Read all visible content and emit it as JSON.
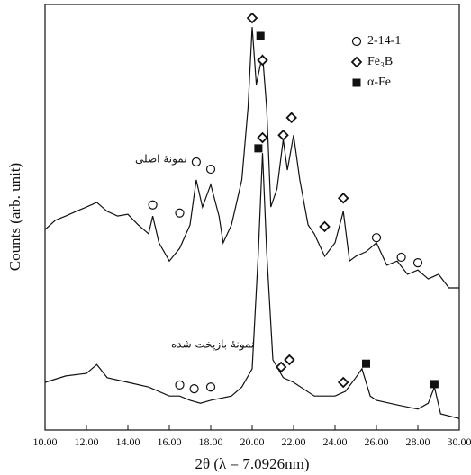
{
  "chart_data": {
    "type": "line",
    "x_label": "2θ (λ = 7.0926nm)",
    "y_label": "Counts (arb. unit)",
    "xlim": [
      10,
      30
    ],
    "ylim": [
      0,
      100
    ],
    "xticks": [
      {
        "value": 10,
        "label": "10.00"
      },
      {
        "value": 12,
        "label": "12.00"
      },
      {
        "value": 14,
        "label": "14.00"
      },
      {
        "value": 16,
        "label": "16.00"
      },
      {
        "value": 18,
        "label": "18.00"
      },
      {
        "value": 20,
        "label": "20.00"
      },
      {
        "value": 22,
        "label": "22.00"
      },
      {
        "value": 24,
        "label": "24.00"
      },
      {
        "value": 26,
        "label": "26.00"
      },
      {
        "value": 28,
        "label": "28.00"
      },
      {
        "value": 30,
        "label": "30.00"
      }
    ],
    "series": [
      {
        "name": "نمونهٔ اصلی",
        "color": "#111111",
        "x": [
          10,
          10.5,
          11,
          11.5,
          12,
          12.5,
          13,
          13.5,
          14,
          14.5,
          15,
          15.2,
          15.5,
          16,
          16.5,
          17,
          17.3,
          17.6,
          18,
          18.4,
          18.6,
          19,
          19.5,
          19.8,
          20,
          20.2,
          20.5,
          20.7,
          20.9,
          21.2,
          21.5,
          21.7,
          22,
          22.3,
          22.7,
          23,
          23.5,
          24,
          24.4,
          24.7,
          25,
          25.5,
          26,
          26.5,
          27,
          27.5,
          28,
          28.5,
          29,
          29.5,
          30
        ],
        "values": [
          47.1,
          49.3,
          50.3,
          51.4,
          52.4,
          53.5,
          51.4,
          50.3,
          50.7,
          48.2,
          46.1,
          50.3,
          44.0,
          39.7,
          42.7,
          48.2,
          58.8,
          52.4,
          57.7,
          50.3,
          44.0,
          48.2,
          58.8,
          75.7,
          94.7,
          81.2,
          88.2,
          75.7,
          52.4,
          56.7,
          68.3,
          61.1,
          69.3,
          58.8,
          48.2,
          46.1,
          40.8,
          44.0,
          51.4,
          39.7,
          40.8,
          41.9,
          44.0,
          38.7,
          39.7,
          36.6,
          37.6,
          35.5,
          36.6,
          33.4,
          33.4
        ]
      },
      {
        "name": "نمونهٔ بازپخت شده",
        "color": "#111111",
        "x": [
          10,
          11,
          12,
          12.5,
          13,
          14,
          15,
          16,
          16.5,
          17,
          17.5,
          18,
          19,
          19.5,
          20,
          20.3,
          20.5,
          20.7,
          21,
          21.5,
          22,
          23,
          24,
          24.5,
          25,
          25.3,
          25.7,
          26,
          27,
          28,
          28.5,
          28.8,
          29.1,
          30
        ],
        "values": [
          11.2,
          12.7,
          13.3,
          15.4,
          12.3,
          11.2,
          10.1,
          8.0,
          8.0,
          7.0,
          6.3,
          7.0,
          8.0,
          10.1,
          14.4,
          41.9,
          65.1,
          41.9,
          16.5,
          12.3,
          11.2,
          8.0,
          8.0,
          9.1,
          12.3,
          14.4,
          8.0,
          7.0,
          5.9,
          4.9,
          6.3,
          10.1,
          3.8,
          2.7
        ]
      }
    ],
    "phases": [
      {
        "name": "2-14-1",
        "shape": "circle",
        "x": [
          15.2,
          16.5,
          17.3,
          18.0,
          26.0,
          27.2,
          28.0,
          16.5,
          17.2,
          18.0
        ],
        "y": [
          52.9,
          51.0,
          63.0,
          61.3,
          45.2,
          40.6,
          39.3,
          10.6,
          9.7,
          10.1
        ]
      },
      {
        "name": "Fe₃B",
        "shape": "diamond",
        "x": [
          20.0,
          20.5,
          20.5,
          21.5,
          21.9,
          23.5,
          24.4,
          21.4,
          21.8,
          24.4
        ],
        "y": [
          96.8,
          86.9,
          68.7,
          69.3,
          73.4,
          47.8,
          54.5,
          14.8,
          16.5,
          11.2
        ]
      },
      {
        "name": "α-Fe",
        "shape": "square",
        "x": [
          20.4,
          20.3,
          25.5,
          28.8
        ],
        "y": [
          92.6,
          66.2,
          15.6,
          10.8
        ]
      }
    ]
  }
}
